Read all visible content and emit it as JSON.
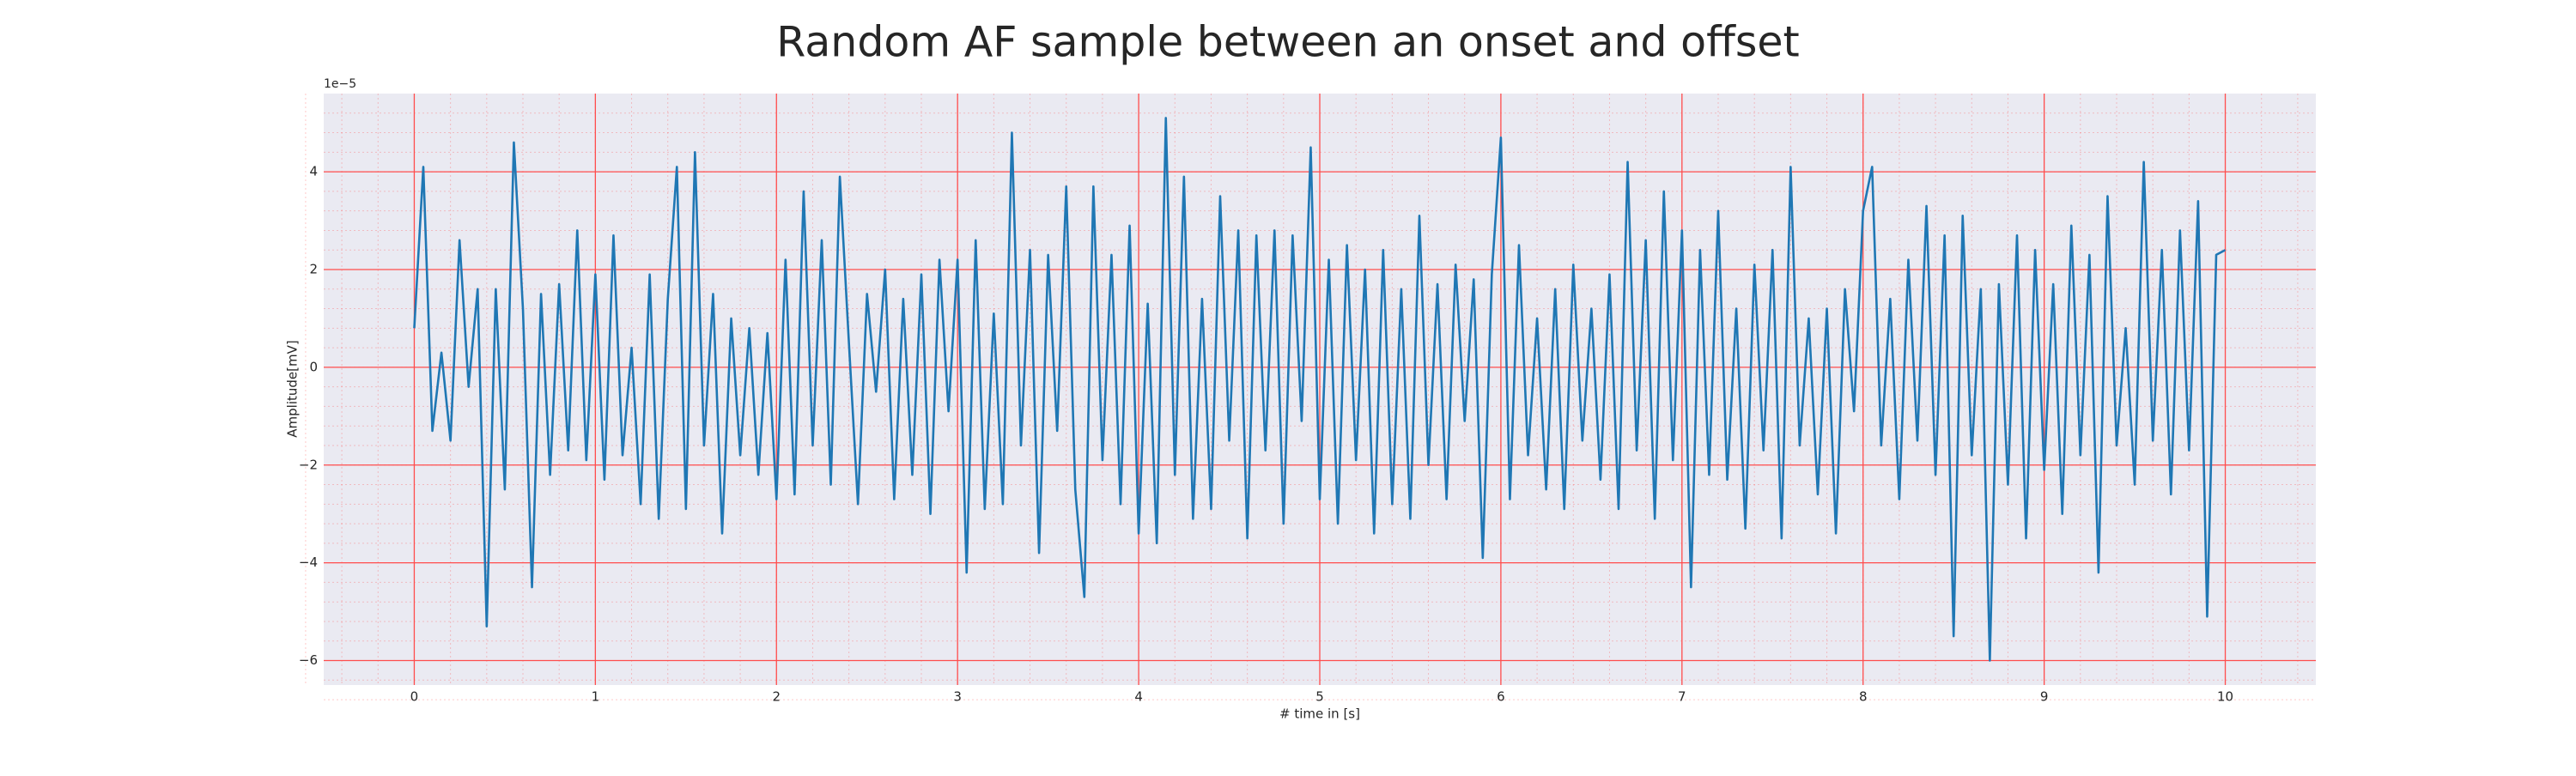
{
  "chart_data": {
    "type": "line",
    "title": "Random AF sample between an onset and offset",
    "xlabel": "# time in [s]",
    "ylabel": "Amplitude[mV]",
    "y_offset_label": "1e−5",
    "x": [
      0,
      0.05,
      0.1,
      0.15,
      0.2,
      0.25,
      0.3,
      0.35,
      0.4,
      0.45,
      0.5,
      0.55,
      0.6,
      0.65,
      0.7,
      0.75,
      0.8,
      0.85,
      0.9,
      0.95,
      1,
      1.05,
      1.1,
      1.15,
      1.2,
      1.25,
      1.3,
      1.35,
      1.4,
      1.45,
      1.5,
      1.55,
      1.6,
      1.65,
      1.7,
      1.75,
      1.8,
      1.85,
      1.9,
      1.95,
      2,
      2.05,
      2.1,
      2.15,
      2.2,
      2.25,
      2.3,
      2.35,
      2.4,
      2.45,
      2.5,
      2.55,
      2.6,
      2.65,
      2.7,
      2.75,
      2.8,
      2.85,
      2.9,
      2.95,
      3,
      3.05,
      3.1,
      3.15,
      3.2,
      3.25,
      3.3,
      3.35,
      3.4,
      3.45,
      3.5,
      3.55,
      3.6,
      3.65,
      3.7,
      3.75,
      3.8,
      3.85,
      3.9,
      3.95,
      4,
      4.05,
      4.1,
      4.15,
      4.2,
      4.25,
      4.3,
      4.35,
      4.4,
      4.45,
      4.5,
      4.55,
      4.6,
      4.65,
      4.7,
      4.75,
      4.8,
      4.85,
      4.9,
      4.95,
      5,
      5.05,
      5.1,
      5.15,
      5.2,
      5.25,
      5.3,
      5.35,
      5.4,
      5.45,
      5.5,
      5.55,
      5.6,
      5.65,
      5.7,
      5.75,
      5.8,
      5.85,
      5.9,
      5.95,
      6,
      6.05,
      6.1,
      6.15,
      6.2,
      6.25,
      6.3,
      6.35,
      6.4,
      6.45,
      6.5,
      6.55,
      6.6,
      6.65,
      6.7,
      6.75,
      6.8,
      6.85,
      6.9,
      6.95,
      7,
      7.05,
      7.1,
      7.15,
      7.2,
      7.25,
      7.3,
      7.35,
      7.4,
      7.45,
      7.5,
      7.55,
      7.6,
      7.65,
      7.7,
      7.75,
      7.8,
      7.85,
      7.9,
      7.95,
      8,
      8.05,
      8.1,
      8.15,
      8.2,
      8.25,
      8.3,
      8.35,
      8.4,
      8.45,
      8.5,
      8.55,
      8.6,
      8.65,
      8.7,
      8.75,
      8.8,
      8.85,
      8.9,
      8.95,
      9,
      9.05,
      9.1,
      9.15,
      9.2,
      9.25,
      9.3,
      9.35,
      9.4,
      9.45,
      9.5,
      9.55,
      9.6,
      9.65,
      9.7,
      9.75,
      9.8,
      9.85,
      9.9,
      9.95,
      10
    ],
    "series": [
      {
        "color": "#1f77b4",
        "values": [
          0.8,
          4.1,
          -1.3,
          0.3,
          -1.5,
          2.6,
          -0.4,
          1.6,
          -5.3,
          1.6,
          -2.5,
          4.6,
          1.2,
          -4.5,
          1.5,
          -2.2,
          1.7,
          -1.7,
          2.8,
          -1.9,
          1.9,
          -2.3,
          2.7,
          -1.8,
          0.4,
          -2.8,
          1.9,
          -3.1,
          1.4,
          4.1,
          -2.9,
          4.4,
          -1.6,
          1.5,
          -3.4,
          1.0,
          -1.8,
          0.8,
          -2.2,
          0.7,
          -2.7,
          2.2,
          -2.6,
          3.6,
          -1.6,
          2.6,
          -2.4,
          3.9,
          0.5,
          -2.8,
          1.5,
          -0.5,
          2.0,
          -2.7,
          1.4,
          -2.2,
          1.9,
          -3.0,
          2.2,
          -0.9,
          2.2,
          -4.2,
          2.6,
          -2.9,
          1.1,
          -2.8,
          4.8,
          -1.6,
          2.4,
          -3.8,
          2.3,
          -1.3,
          3.7,
          -2.5,
          -4.7,
          3.7,
          -1.9,
          2.3,
          -2.8,
          2.9,
          -3.4,
          1.3,
          -3.6,
          5.1,
          -2.2,
          3.9,
          -3.1,
          1.4,
          -2.9,
          3.5,
          -1.5,
          2.8,
          -3.5,
          2.7,
          -1.7,
          2.8,
          -3.2,
          2.7,
          -1.1,
          4.5,
          -2.7,
          2.2,
          -3.2,
          2.5,
          -1.9,
          2.0,
          -3.4,
          2.4,
          -2.8,
          1.6,
          -3.1,
          3.1,
          -2.0,
          1.7,
          -2.7,
          2.1,
          -1.1,
          1.8,
          -3.9,
          1.9,
          4.7,
          -2.7,
          2.5,
          -1.8,
          1.0,
          -2.5,
          1.6,
          -2.9,
          2.1,
          -1.5,
          1.2,
          -2.3,
          1.9,
          -2.9,
          4.2,
          -1.7,
          2.6,
          -3.1,
          3.6,
          -1.9,
          2.8,
          -4.5,
          2.4,
          -2.2,
          3.2,
          -2.3,
          1.2,
          -3.3,
          2.1,
          -1.7,
          2.4,
          -3.5,
          4.1,
          -1.6,
          1.0,
          -2.6,
          1.2,
          -3.4,
          1.6,
          -0.9,
          3.2,
          4.1,
          -1.6,
          1.4,
          -2.7,
          2.2,
          -1.5,
          3.3,
          -2.2,
          2.7,
          -5.5,
          3.1,
          -1.8,
          1.6,
          -6.0,
          1.7,
          -2.4,
          2.7,
          -3.5,
          2.4,
          -2.1,
          1.7,
          -3.0,
          2.9,
          -1.8,
          2.3,
          -4.2,
          3.5,
          -1.6,
          0.8,
          -2.4,
          4.2,
          -1.5,
          2.4,
          -2.6,
          2.8,
          -1.7,
          3.4,
          -5.1,
          2.3,
          2.4
        ]
      }
    ],
    "xlim": [
      -0.5,
      10.5
    ],
    "ylim": [
      -6.5,
      5.6
    ],
    "xticks": [
      0,
      1,
      2,
      3,
      4,
      5,
      6,
      7,
      8,
      9,
      10
    ],
    "yticks": [
      {
        "value": -6,
        "label": "−6"
      },
      {
        "value": -4,
        "label": "−4"
      },
      {
        "value": -2,
        "label": "−2"
      },
      0,
      2,
      4
    ],
    "grid": true,
    "grid_color": "#ff4d4d",
    "minor_grid": true,
    "background": "#eaeaf2"
  }
}
